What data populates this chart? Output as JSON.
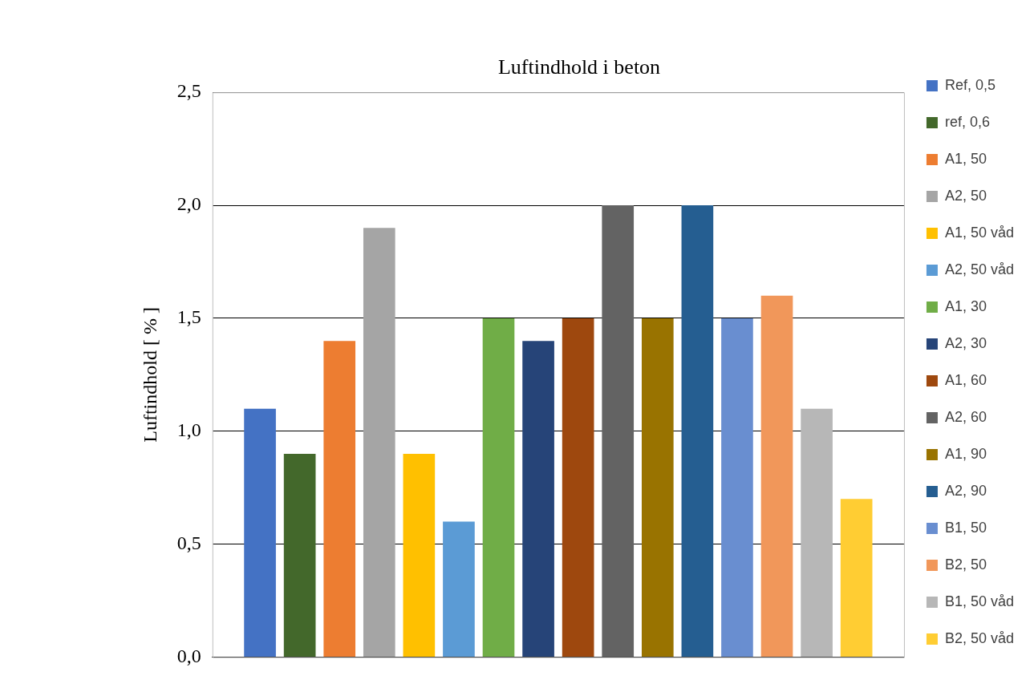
{
  "chart_data": {
    "type": "bar",
    "title": "Luftindhold i beton",
    "ylabel": "Luftindhold [ % ]",
    "categories": [
      null
    ],
    "series": [
      {
        "name": "Ref, 0,5",
        "color": "#4472c4",
        "values": [
          1.1
        ]
      },
      {
        "name": "ref, 0,6",
        "color": "#43682b",
        "values": [
          0.9
        ]
      },
      {
        "name": "A1, 50",
        "color": "#ed7d31",
        "values": [
          1.4
        ]
      },
      {
        "name": "A2, 50",
        "color": "#a5a5a5",
        "values": [
          1.9
        ]
      },
      {
        "name": "A1, 50 våd",
        "color": "#ffc000",
        "values": [
          0.9
        ]
      },
      {
        "name": "A2, 50 våd",
        "color": "#5b9bd5",
        "values": [
          0.6
        ]
      },
      {
        "name": "A1, 30",
        "color": "#70ad47",
        "values": [
          1.5
        ]
      },
      {
        "name": "A2, 30",
        "color": "#264478",
        "values": [
          1.4
        ]
      },
      {
        "name": "A1, 60",
        "color": "#9e480e",
        "values": [
          1.5
        ]
      },
      {
        "name": "A2, 60",
        "color": "#636363",
        "values": [
          2.0
        ]
      },
      {
        "name": "A1, 90",
        "color": "#997300",
        "values": [
          1.5
        ]
      },
      {
        "name": "A2, 90",
        "color": "#255e91",
        "values": [
          2.0
        ]
      },
      {
        "name": "B1, 50",
        "color": "#698ed0",
        "values": [
          1.5
        ]
      },
      {
        "name": "B2, 50",
        "color": "#f1975a",
        "values": [
          1.6
        ]
      },
      {
        "name": "B1, 50 våd",
        "color": "#b7b7b7",
        "values": [
          1.1
        ]
      },
      {
        "name": "B2, 50 våd",
        "color": "#ffcd33",
        "values": [
          0.7
        ]
      }
    ],
    "ylim": [
      0,
      2.5
    ],
    "yticks": [
      {
        "value": 0,
        "label": "0,0"
      },
      {
        "value": 0.5,
        "label": "0,5"
      },
      {
        "value": 1,
        "label": "1,0"
      },
      {
        "value": 1.5,
        "label": "1,5"
      },
      {
        "value": 2,
        "label": "2,0"
      },
      {
        "value": 2.5,
        "label": "2,5"
      }
    ],
    "grid": "y",
    "legend": "right"
  }
}
